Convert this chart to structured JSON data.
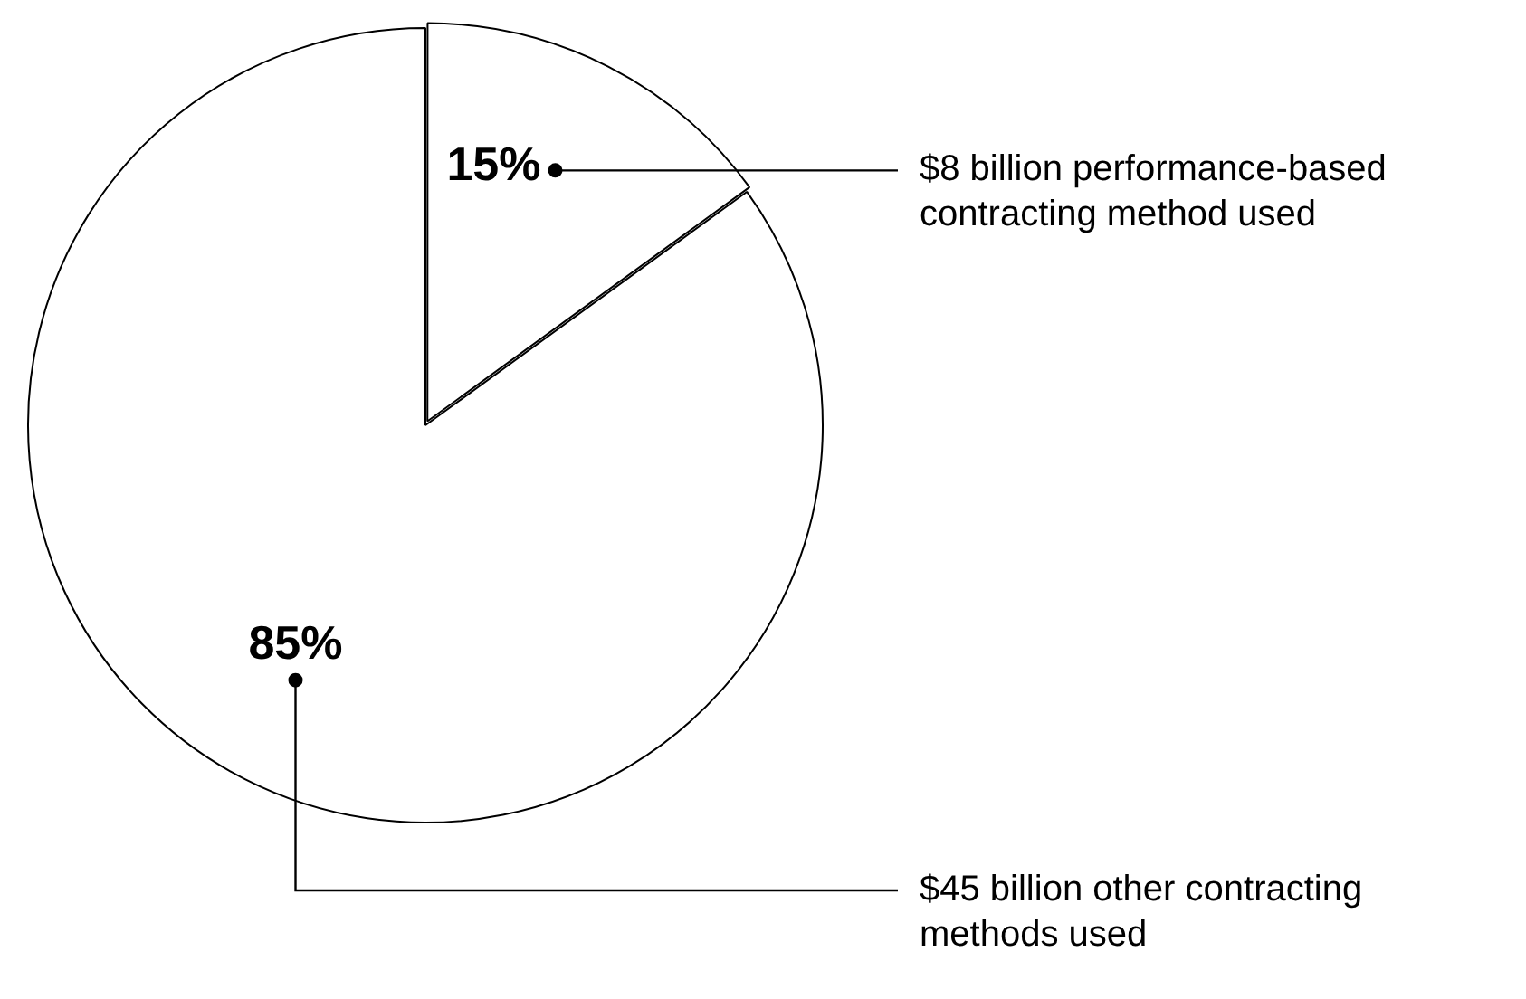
{
  "chart_data": {
    "type": "pie",
    "categories": [
      "$8 billion performance-based contracting method used",
      "$45 billion other contracting methods used"
    ],
    "values": [
      15,
      85
    ],
    "value_labels": [
      "15%",
      "85%"
    ],
    "colors": [
      "#ffffff",
      "#ffffff"
    ],
    "legend": false
  }
}
